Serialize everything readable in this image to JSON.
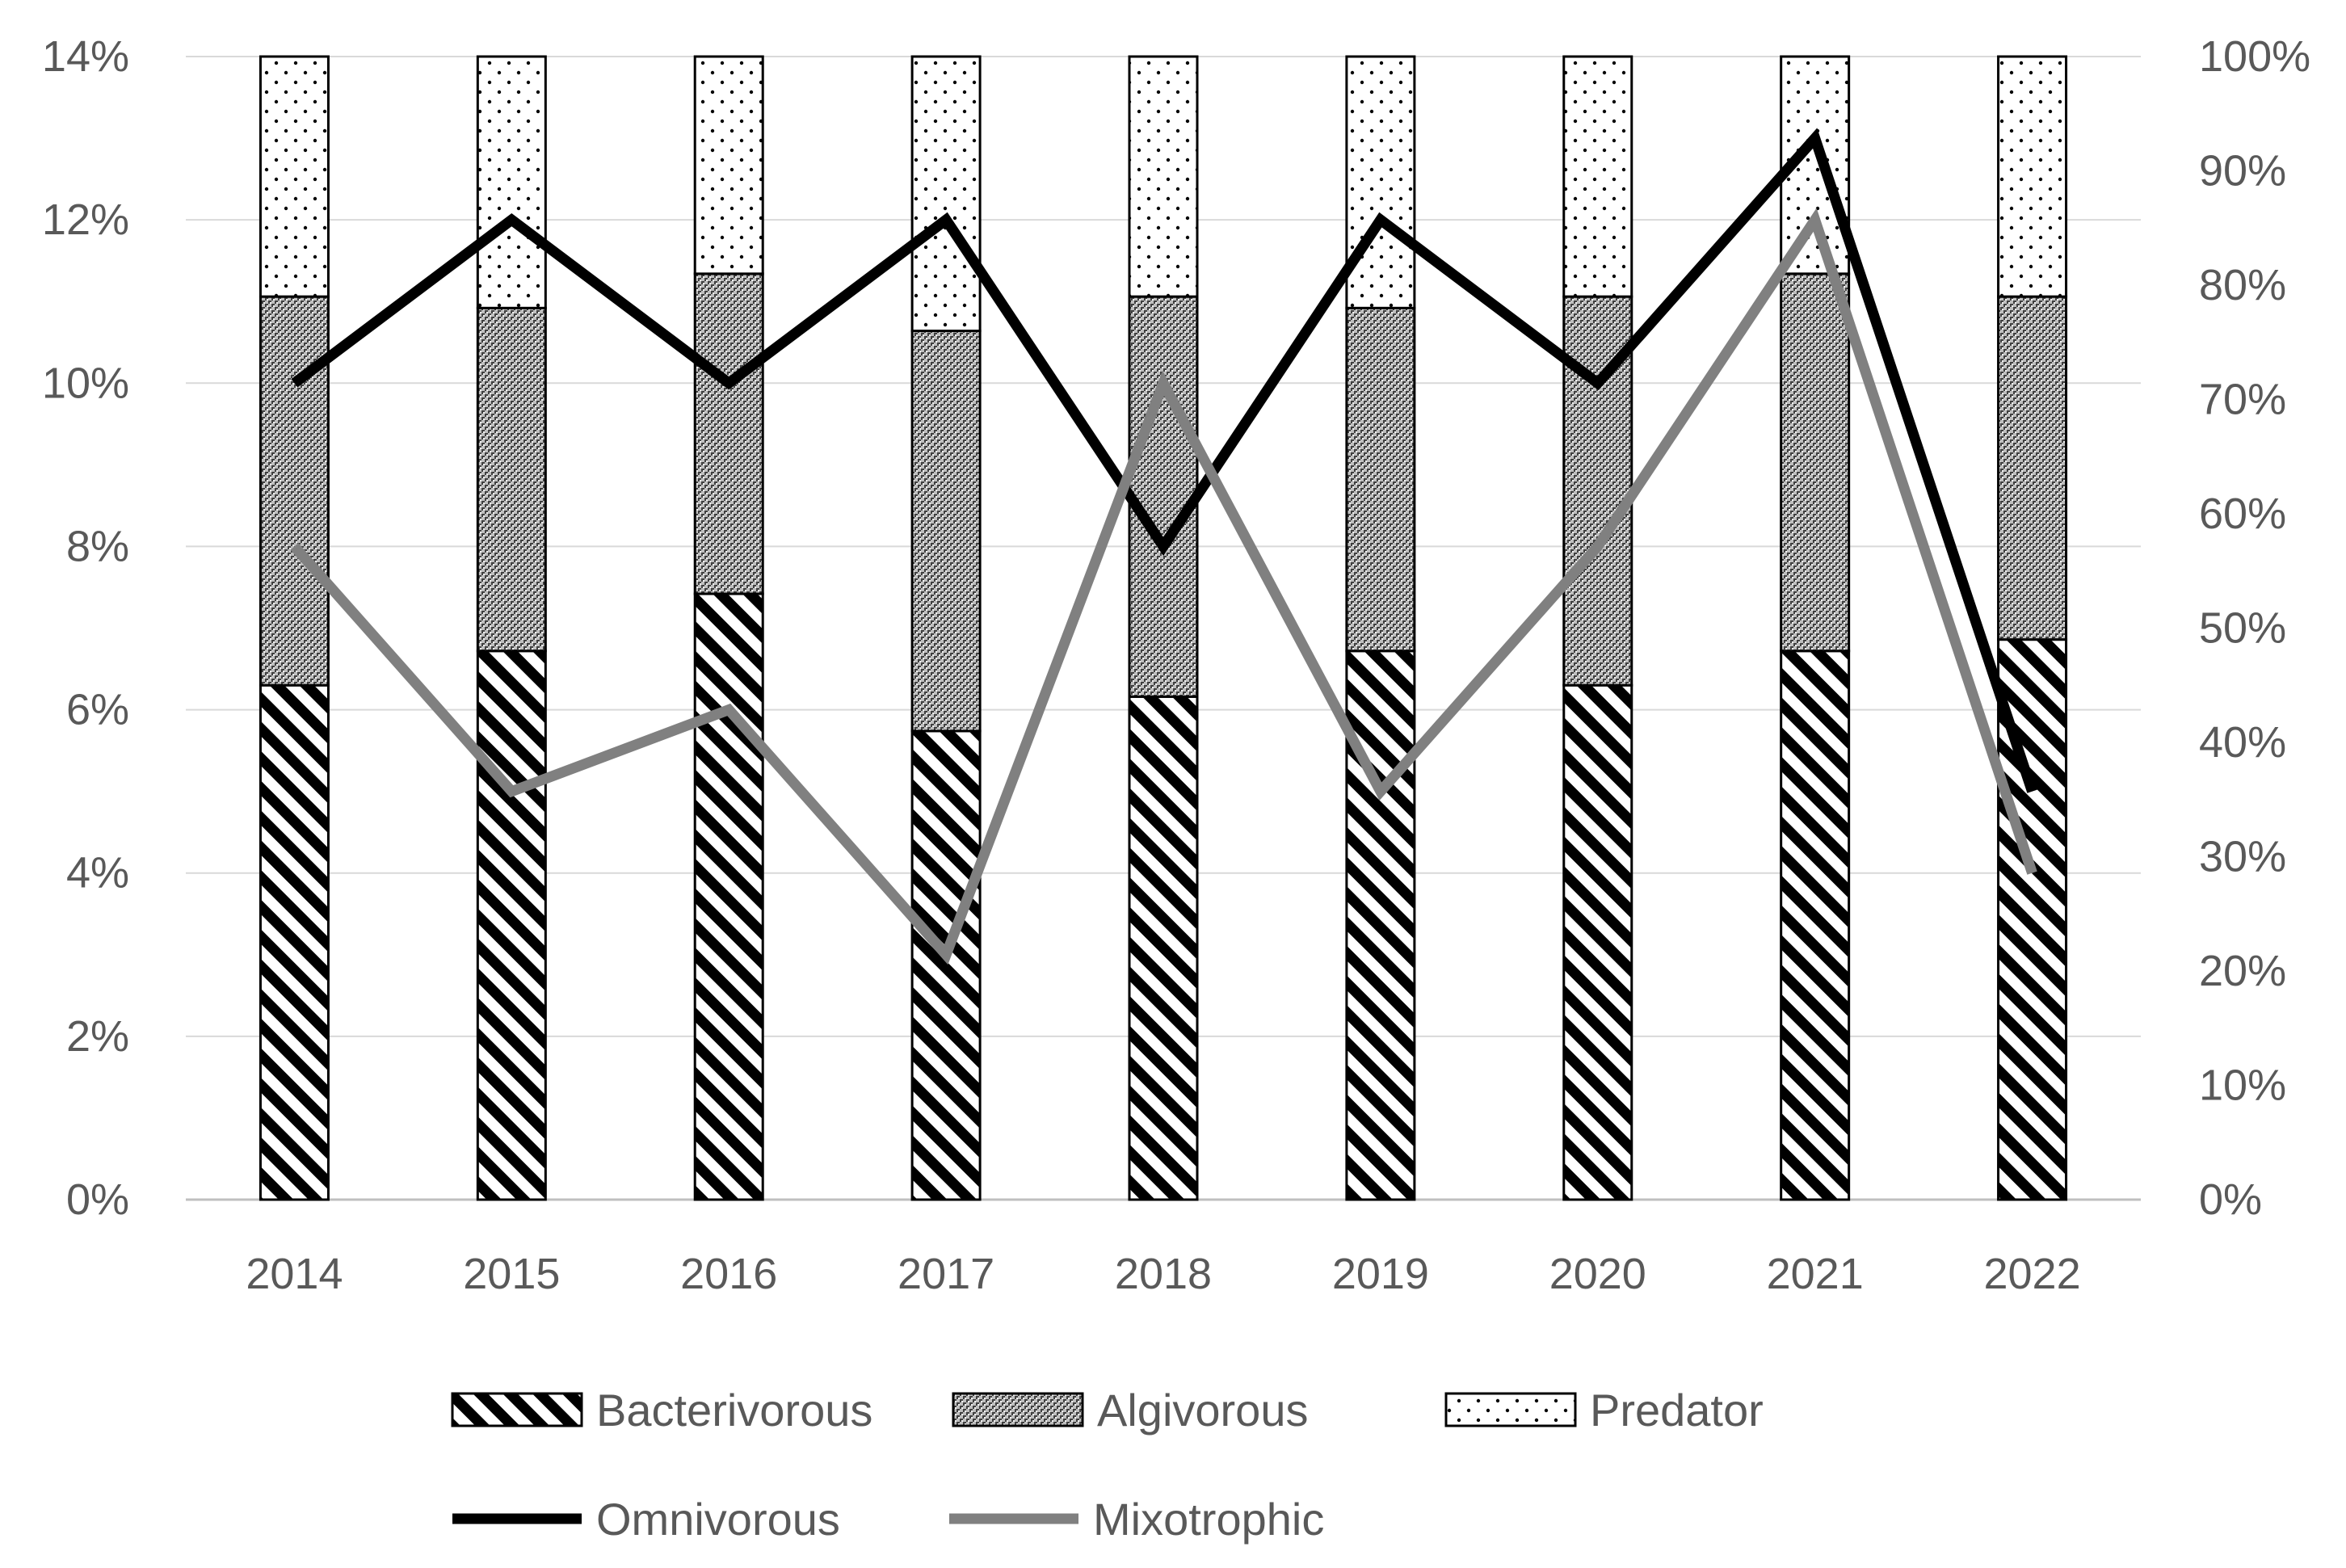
{
  "chart_data": {
    "type": "bar",
    "stacked": true,
    "categories": [
      "2014",
      "2015",
      "2016",
      "2017",
      "2018",
      "2019",
      "2020",
      "2021",
      "2022"
    ],
    "series": [
      {
        "name": "Bacterivorous",
        "type": "bar",
        "axis": "right",
        "pattern": "diagonal-hatch",
        "values": [
          45,
          48,
          53,
          41,
          44,
          48,
          45,
          48,
          49
        ]
      },
      {
        "name": "Algivorous",
        "type": "bar",
        "axis": "right",
        "pattern": "dense-crosshatch",
        "values": [
          34,
          30,
          28,
          35,
          35,
          30,
          34,
          33,
          30
        ]
      },
      {
        "name": "Predator",
        "type": "bar",
        "axis": "right",
        "pattern": "sparse-dots",
        "values": [
          21,
          22,
          19,
          24,
          21,
          22,
          21,
          19,
          21
        ]
      },
      {
        "name": "Omnivorous",
        "type": "line",
        "axis": "left",
        "color": "#000000",
        "values": [
          10,
          12,
          10,
          12,
          8,
          12,
          10,
          13,
          5
        ]
      },
      {
        "name": "Mixotrophic",
        "type": "line",
        "axis": "left",
        "color": "#808080",
        "values": [
          8,
          5,
          6,
          3,
          10,
          5,
          8,
          12,
          4
        ]
      }
    ],
    "y_left": {
      "range": [
        0,
        14
      ],
      "ticks": [
        "0%",
        "2%",
        "4%",
        "6%",
        "8%",
        "10%",
        "12%",
        "14%"
      ]
    },
    "y_right": {
      "range": [
        0,
        100
      ],
      "ticks": [
        "0%",
        "10%",
        "20%",
        "30%",
        "40%",
        "50%",
        "60%",
        "70%",
        "80%",
        "90%",
        "100%"
      ]
    },
    "grid": true,
    "legend": {
      "position": "bottom",
      "rows": [
        [
          "Bacterivorous",
          "Algivorous",
          "Predator"
        ],
        [
          "Omnivorous",
          "Mixotrophic"
        ]
      ]
    }
  }
}
